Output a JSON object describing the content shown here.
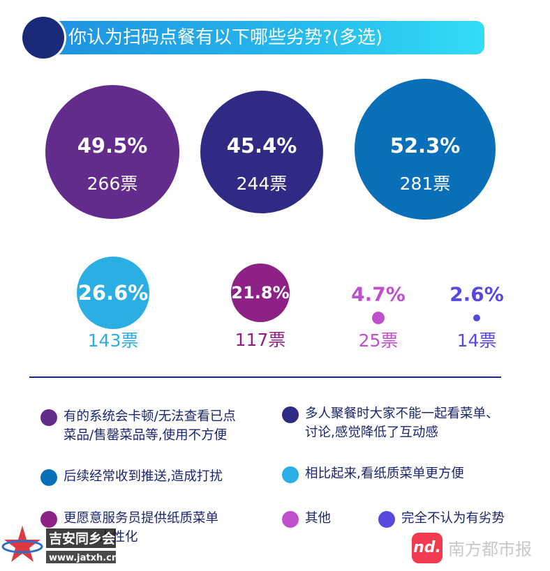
{
  "title": "你认为扫码点餐有以下哪些劣势?(多选)",
  "colors": {
    "title_circle": "#1a2a78",
    "divider": "#1a2a78",
    "legend_text": "#1c2470"
  },
  "chart_data": {
    "type": "bubble",
    "title": "你认为扫码点餐有以下哪些劣势?(多选)",
    "items": [
      {
        "label": "有的系统会卡顿/无法查看已点菜品/售罄菜品等,使用不方便",
        "percent": "49.5%",
        "votes": "266票",
        "value": 49.5,
        "count": 266,
        "color": "#632c8c"
      },
      {
        "label": "多人聚餐时大家不能一起看菜单、讨论,感觉降低了互动感",
        "percent": "45.4%",
        "votes": "244票",
        "value": 45.4,
        "count": 244,
        "color": "#302a85"
      },
      {
        "label": "后续经常收到推送,造成打扰",
        "percent": "52.3%",
        "votes": "281票",
        "value": 52.3,
        "count": 281,
        "color": "#0a6fb9"
      },
      {
        "label": "相比起来,看纸质菜单更方便",
        "percent": "26.6%",
        "votes": "143票",
        "value": 26.6,
        "count": 143,
        "color": "#2aaee3"
      },
      {
        "label": "更愿意服务员提供纸质菜单人性化",
        "percent": "21.8%",
        "votes": "117票",
        "value": 21.8,
        "count": 117,
        "color": "#8e2186"
      },
      {
        "label": "其他",
        "percent": "4.7%",
        "votes": "25票",
        "value": 4.7,
        "count": 25,
        "color": "#c04fcc"
      },
      {
        "label": "完全不认为有劣势",
        "percent": "2.6%",
        "votes": "14票",
        "value": 2.6,
        "count": 14,
        "color": "#5748e0"
      }
    ]
  },
  "legend": [
    {
      "line1": "有的系统会卡顿/无法查看已点",
      "line2": "菜品/售罄菜品等,使用不方便"
    },
    {
      "line1": "多人聚餐时大家不能一起看菜单、",
      "line2": "讨论,感觉降低了互动感"
    },
    {
      "line1": "后续经常收到推送,造成打扰",
      "line2": ""
    },
    {
      "line1": "相比起来,看纸质菜单更方便",
      "line2": ""
    },
    {
      "line1": "更愿意服务员提供纸质菜单",
      "line2": "人性化"
    },
    {
      "line1": "其他",
      "line2": ""
    },
    {
      "line1": "完全不认为有劣势",
      "line2": ""
    }
  ],
  "watermark_left": {
    "name": "吉安同乡会",
    "url": "www.jatxh.cn"
  },
  "watermark_right": {
    "icon_text": "nd.",
    "name": "南方都市报"
  }
}
